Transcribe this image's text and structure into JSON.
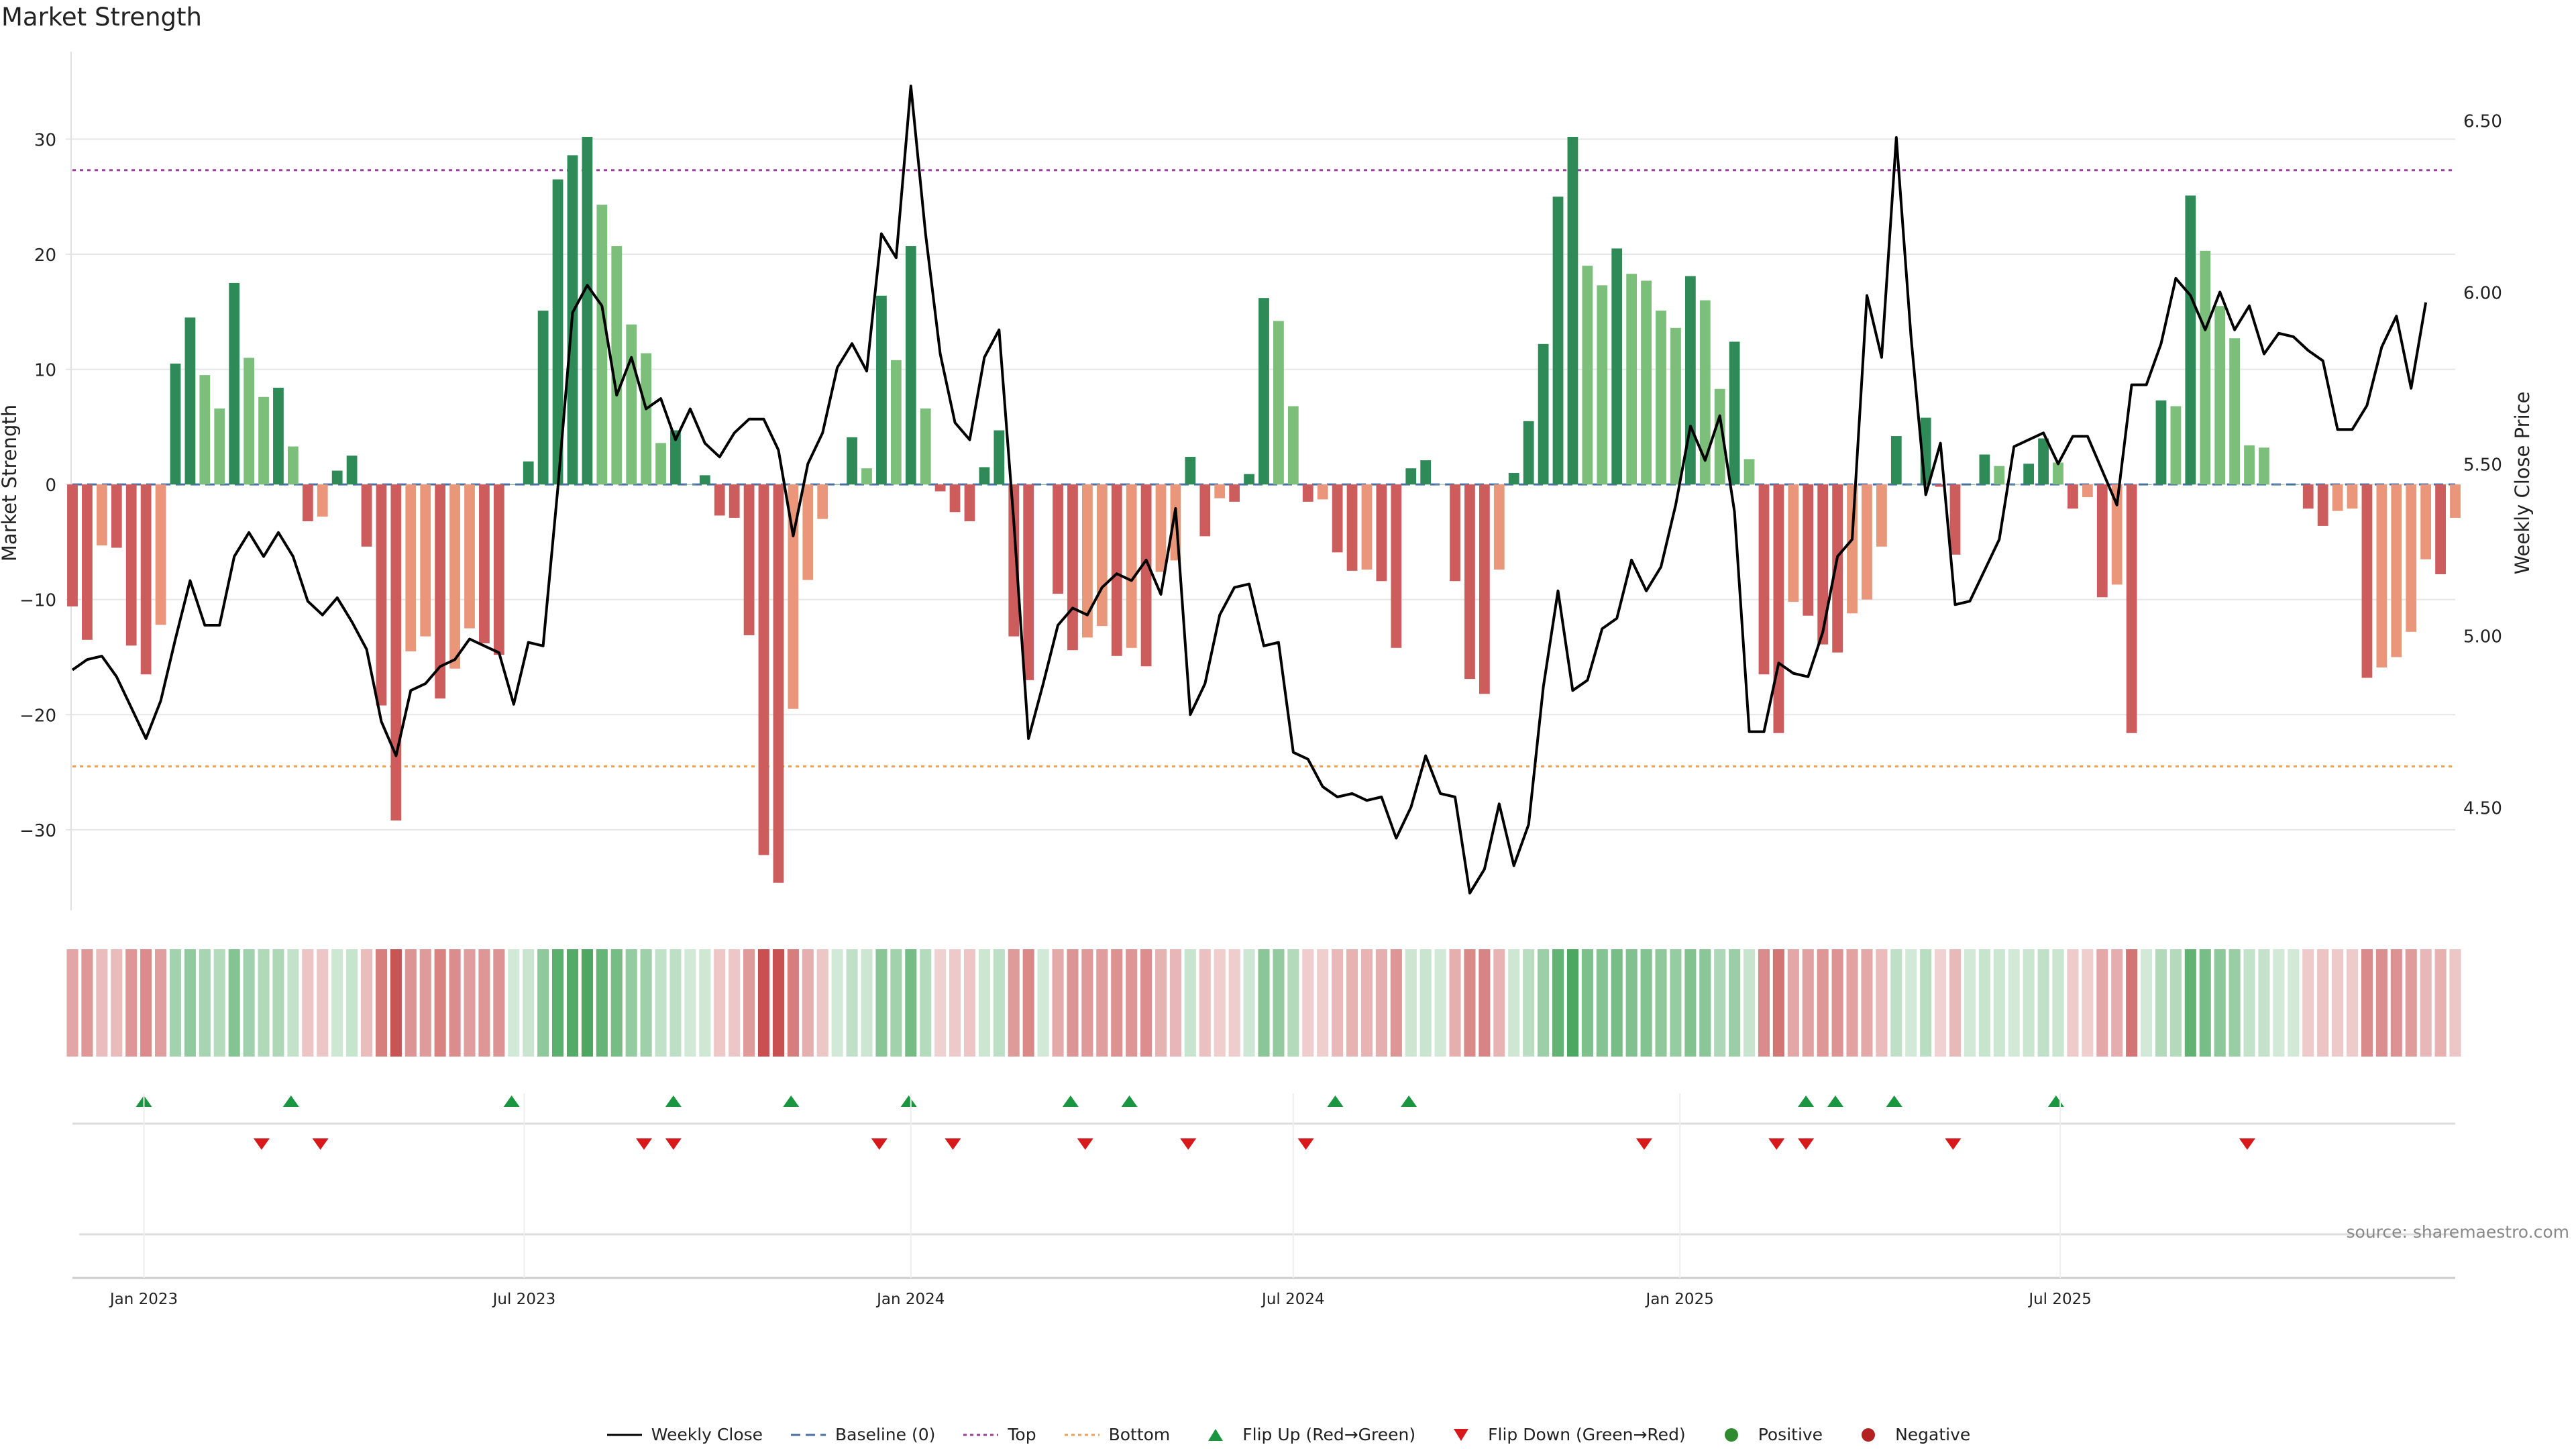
{
  "title": "Market Strength",
  "source": "source: sharemaestro.com",
  "colors": {
    "strong_green": "#2e8b57",
    "light_green": "#7bbf7b",
    "strong_red": "#cd5c5c",
    "light_red": "#e9967a",
    "price": "#000000",
    "baseline": "#4a6fa5",
    "top": "#9b3d9b",
    "bottom": "#f0a050",
    "flip_up": "#1a9641",
    "flip_down": "#d7191c"
  },
  "legend": [
    {
      "label": "Weekly Close",
      "icon": "solid-line",
      "color": "#000000"
    },
    {
      "label": "Baseline (0)",
      "icon": "dashed-line",
      "color": "#4a6fa5"
    },
    {
      "label": "Top",
      "icon": "dotted-line",
      "color": "#9b3d9b"
    },
    {
      "label": "Bottom",
      "icon": "dotted-line",
      "color": "#f0a050"
    },
    {
      "label": "Flip Up (Red→Green)",
      "icon": "triangle-up",
      "color": "#1a9641"
    },
    {
      "label": "Flip Down (Green→Red)",
      "icon": "triangle-down",
      "color": "#d7191c"
    },
    {
      "label": "Positive",
      "icon": "circle",
      "color": "#2e8b2e"
    },
    {
      "label": "Negative",
      "icon": "circle",
      "color": "#b22222"
    }
  ],
  "chart_data": {
    "type": "bar",
    "title": "Market Strength",
    "ylabel": "Market Strength",
    "y2label": "Weekly Close Price",
    "ylim": [
      -37,
      37.6
    ],
    "y2lim": [
      4.2,
      6.7
    ],
    "yticks": [
      -30,
      -20,
      -10,
      0,
      10,
      20,
      30
    ],
    "y2ticks": [
      "4.50",
      "5.00",
      "5.50",
      "6.00",
      "6.50"
    ],
    "x_start": "2022-11-28",
    "x_tick_labels": [
      {
        "label": "Jan 2023",
        "date": "2023-01-01"
      },
      {
        "label": "Jul 2023",
        "date": "2023-07-01"
      },
      {
        "label": "Jan 2024",
        "date": "2024-01-01"
      },
      {
        "label": "Jul 2024",
        "date": "2024-07-01"
      },
      {
        "label": "Jan 2025",
        "date": "2025-01-01"
      },
      {
        "label": "Jul 2025",
        "date": "2025-07-01"
      }
    ],
    "top_level": 27.3,
    "bottom_level": -24.5,
    "series": [
      {
        "name": "Market Strength",
        "values": [
          -10.6,
          -13.5,
          -5.3,
          -5.5,
          -14,
          -16.5,
          -12.2,
          10.5,
          14.5,
          9.5,
          6.6,
          17.5,
          11,
          7.6,
          8.4,
          3.3,
          -3.2,
          -2.8,
          1.2,
          2.5,
          -5.4,
          -19.2,
          -29.2,
          -14.5,
          -13.2,
          -18.6,
          -16,
          -12.5,
          -13.8,
          -14.8,
          0,
          2,
          15.1,
          26.5,
          28.6,
          30.2,
          24.3,
          20.7,
          13.9,
          11.4,
          3.6,
          4.7,
          0,
          0.8,
          -2.7,
          -2.9,
          -13.1,
          -32.2,
          -34.6,
          -19.5,
          -8.3,
          -3,
          0,
          4.1,
          1.4,
          16.4,
          10.8,
          20.7,
          6.6,
          -0.6,
          -2.4,
          -3.2,
          1.5,
          4.7,
          -13.2,
          -17,
          0,
          -9.5,
          -14.4,
          -13.3,
          -12.3,
          -14.9,
          -14.2,
          -15.8,
          -7.6,
          -6.6,
          2.4,
          -4.5,
          -1.2,
          -1.5,
          0.9,
          16.2,
          14.2,
          6.8,
          -1.5,
          -1.3,
          -5.9,
          -7.5,
          -7.4,
          -8.4,
          -14.2,
          1.4,
          2.1,
          0,
          -8.4,
          -16.9,
          -18.2,
          -7.4,
          1,
          5.5,
          12.2,
          25,
          30.2,
          19,
          17.3,
          20.5,
          18.3,
          17.7,
          15.1,
          13.6,
          18.1,
          16,
          8.3,
          12.4,
          2.2,
          -16.5,
          -21.6,
          -10.2,
          -11.4,
          -13.9,
          -14.6,
          -11.2,
          -10,
          -5.4,
          4.2,
          0,
          5.8,
          -0.2,
          -6.1,
          0,
          2.6,
          1.6,
          0,
          1.8,
          4,
          1.9,
          -2.1,
          -1.1,
          -9.8,
          -8.7,
          -21.6,
          0,
          7.3,
          6.8,
          25.1,
          20.3,
          15.5,
          12.7,
          3.4,
          3.2,
          0,
          0,
          -2.1,
          -3.6,
          -2.3,
          -2.1,
          -16.8,
          -15.9,
          -15,
          -12.8,
          -6.5,
          -7.8,
          -2.9
        ]
      },
      {
        "name": "Weekly Close",
        "values": [
          4.9,
          4.93,
          4.94,
          4.88,
          4.79,
          4.7,
          4.81,
          4.99,
          5.16,
          5.03,
          5.03,
          5.23,
          5.3,
          5.23,
          5.3,
          5.23,
          5.1,
          5.06,
          5.11,
          5.04,
          4.96,
          4.75,
          4.65,
          4.84,
          4.86,
          4.91,
          4.93,
          4.99,
          4.97,
          4.95,
          4.8,
          4.98,
          4.97,
          5.43,
          5.94,
          6.02,
          5.96,
          5.7,
          5.81,
          5.66,
          5.69,
          5.57,
          5.66,
          5.56,
          5.52,
          5.59,
          5.63,
          5.63,
          5.54,
          5.29,
          5.5,
          5.59,
          5.78,
          5.85,
          5.77,
          6.17,
          6.1,
          6.6,
          6.17,
          5.82,
          5.62,
          5.57,
          5.81,
          5.89,
          5.33,
          4.7,
          4.86,
          5.03,
          5.08,
          5.06,
          5.14,
          5.18,
          5.16,
          5.22,
          5.12,
          5.37,
          4.77,
          4.86,
          5.06,
          5.14,
          5.15,
          4.97,
          4.98,
          4.66,
          4.64,
          4.56,
          4.53,
          4.54,
          4.52,
          4.53,
          4.41,
          4.5,
          4.65,
          4.54,
          4.53,
          4.25,
          4.32,
          4.51,
          4.33,
          4.45,
          4.85,
          5.13,
          4.84,
          4.87,
          5.02,
          5.05,
          5.22,
          5.13,
          5.2,
          5.38,
          5.61,
          5.51,
          5.64,
          5.36,
          4.72,
          4.72,
          4.92,
          4.89,
          4.88,
          5.01,
          5.23,
          5.28,
          5.99,
          5.81,
          6.45,
          5.87,
          5.41,
          5.56,
          5.09,
          5.1,
          5.19,
          5.28,
          5.55,
          5.57,
          5.59,
          5.5,
          5.58,
          5.58,
          5.48,
          5.38,
          5.73,
          5.73,
          5.85,
          6.04,
          5.99,
          5.89,
          6.0,
          5.89,
          5.96,
          5.82,
          5.88,
          5.87,
          5.83,
          5.8,
          5.6,
          5.6,
          5.67,
          5.84,
          5.93,
          5.72,
          5.97
        ]
      }
    ],
    "flip_up_dates": [
      "2023-01-01",
      "2023-03-12",
      "2023-06-25",
      "2023-09-10",
      "2023-11-05",
      "2023-12-31",
      "2024-03-17",
      "2024-04-14",
      "2024-07-21",
      "2024-08-25",
      "2025-03-02",
      "2025-03-16",
      "2025-04-13",
      "2025-06-29"
    ],
    "flip_down_dates": [
      "2023-02-26",
      "2023-03-26",
      "2023-08-27",
      "2023-09-10",
      "2023-12-17",
      "2024-01-21",
      "2024-03-24",
      "2024-05-12",
      "2024-07-07",
      "2024-12-15",
      "2025-02-16",
      "2025-03-02",
      "2025-05-11",
      "2025-09-28"
    ]
  }
}
